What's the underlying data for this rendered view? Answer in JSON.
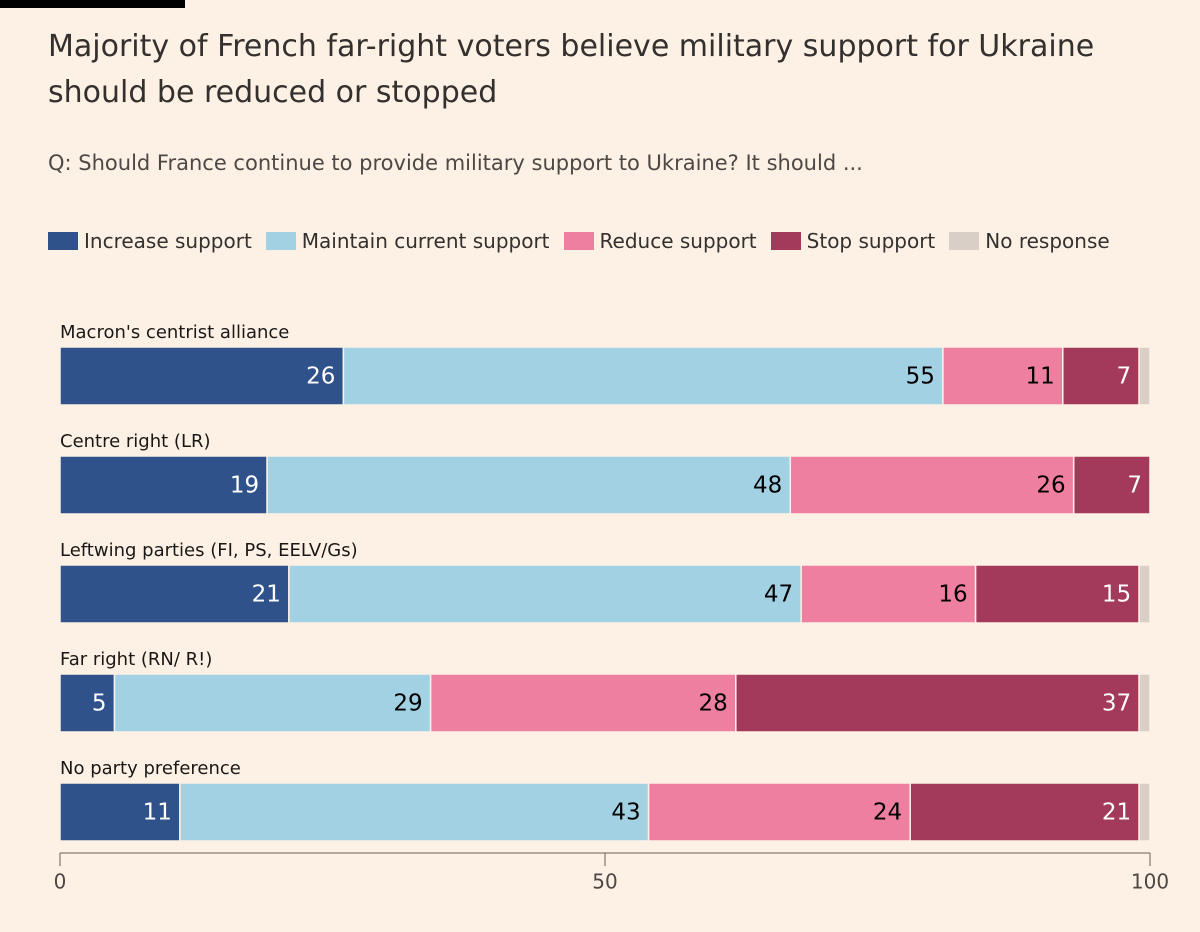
{
  "chart_data": {
    "type": "stacked-bar-horizontal",
    "title": "Majority of French far-right voters believe military support for Ukraine should be reduced or stopped",
    "subtitle": "Q: Should France continue to provide military support to Ukraine? It should ...",
    "categories": [
      "Macron's centrist alliance",
      "Centre right (LR)",
      "Leftwing parties (FI, PS, EELV/Gs)",
      "Far right (RN/ R!)",
      "No party preference"
    ],
    "series": [
      {
        "name": "Increase support",
        "color": "#2e5289",
        "values": [
          26,
          19,
          21,
          5,
          11
        ]
      },
      {
        "name": "Maintain current support",
        "color": "#a3d1e4",
        "values": [
          55,
          48,
          47,
          29,
          43
        ]
      },
      {
        "name": "Reduce support",
        "color": "#ee7fa0",
        "values": [
          11,
          26,
          16,
          28,
          24
        ]
      },
      {
        "name": "Stop support",
        "color": "#a33a5b",
        "values": [
          7,
          7,
          15,
          37,
          21
        ]
      },
      {
        "name": "No response",
        "color": "#d9cfc7",
        "values": [
          1,
          0,
          1,
          1,
          1
        ],
        "labels": false
      }
    ],
    "xlim": [
      0,
      100
    ],
    "xticks": [
      0,
      50,
      100
    ]
  }
}
